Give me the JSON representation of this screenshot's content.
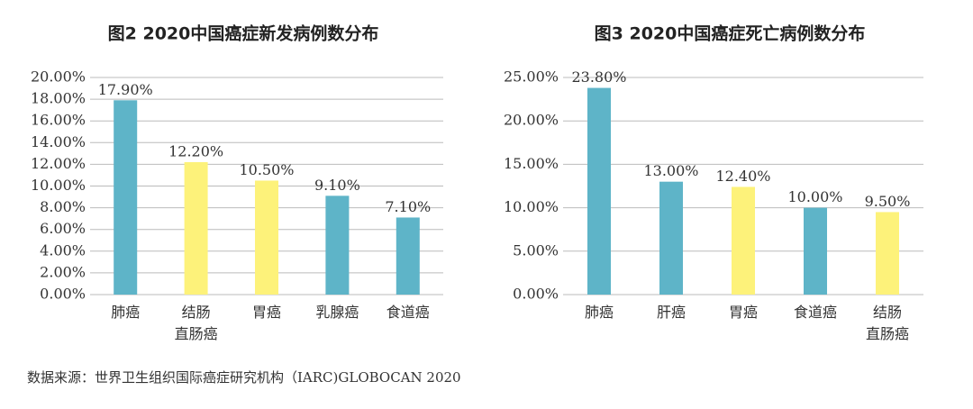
{
  "chart_data": [
    {
      "type": "bar",
      "title": "图2 2020中国癌症新发病例数分布",
      "categories": [
        "肺癌",
        "结肠\n直肠癌",
        "胃癌",
        "乳腺癌",
        "食道癌"
      ],
      "values": [
        17.9,
        12.2,
        10.5,
        9.1,
        7.1
      ],
      "value_labels": [
        "17.90%",
        "12.20%",
        "10.50%",
        "9.10%",
        "7.10%"
      ],
      "colors": [
        "#5eb4c8",
        "#fdf27a",
        "#fdf27a",
        "#5eb4c8",
        "#5eb4c8"
      ],
      "ylim": [
        0,
        20
      ],
      "yticks": [
        {
          "value": 0,
          "label": "0.00%"
        },
        {
          "value": 2,
          "label": "2.00%"
        },
        {
          "value": 4,
          "label": "4.00%"
        },
        {
          "value": 6,
          "label": "6.00%"
        },
        {
          "value": 8,
          "label": "8.00%"
        },
        {
          "value": 10,
          "label": "10.00%"
        },
        {
          "value": 12,
          "label": "12.00%"
        },
        {
          "value": 14,
          "label": "14.00%"
        },
        {
          "value": 16,
          "label": "16.00%"
        },
        {
          "value": 18,
          "label": "18.00%"
        },
        {
          "value": 20,
          "label": "20.00%"
        }
      ],
      "grid": true
    },
    {
      "type": "bar",
      "title": "图3 2020中国癌症死亡病例数分布",
      "categories": [
        "肺癌",
        "肝癌",
        "胃癌",
        "食道癌",
        "结肠\n直肠癌"
      ],
      "values": [
        23.8,
        13.0,
        12.4,
        10.0,
        9.5
      ],
      "value_labels": [
        "23.80%",
        "13.00%",
        "12.40%",
        "10.00%",
        "9.50%"
      ],
      "colors": [
        "#5eb4c8",
        "#5eb4c8",
        "#fdf27a",
        "#5eb4c8",
        "#fdf27a"
      ],
      "ylim": [
        0,
        25
      ],
      "yticks": [
        {
          "value": 0,
          "label": "0.00%"
        },
        {
          "value": 5,
          "label": "5.00%"
        },
        {
          "value": 10,
          "label": "10.00%"
        },
        {
          "value": 15,
          "label": "15.00%"
        },
        {
          "value": 20,
          "label": "20.00%"
        },
        {
          "value": 25,
          "label": "25.00%"
        }
      ],
      "grid": true
    }
  ],
  "source": "数据来源：世界卫生组织国际癌症研究机构（IARC)GLOBOCAN 2020"
}
